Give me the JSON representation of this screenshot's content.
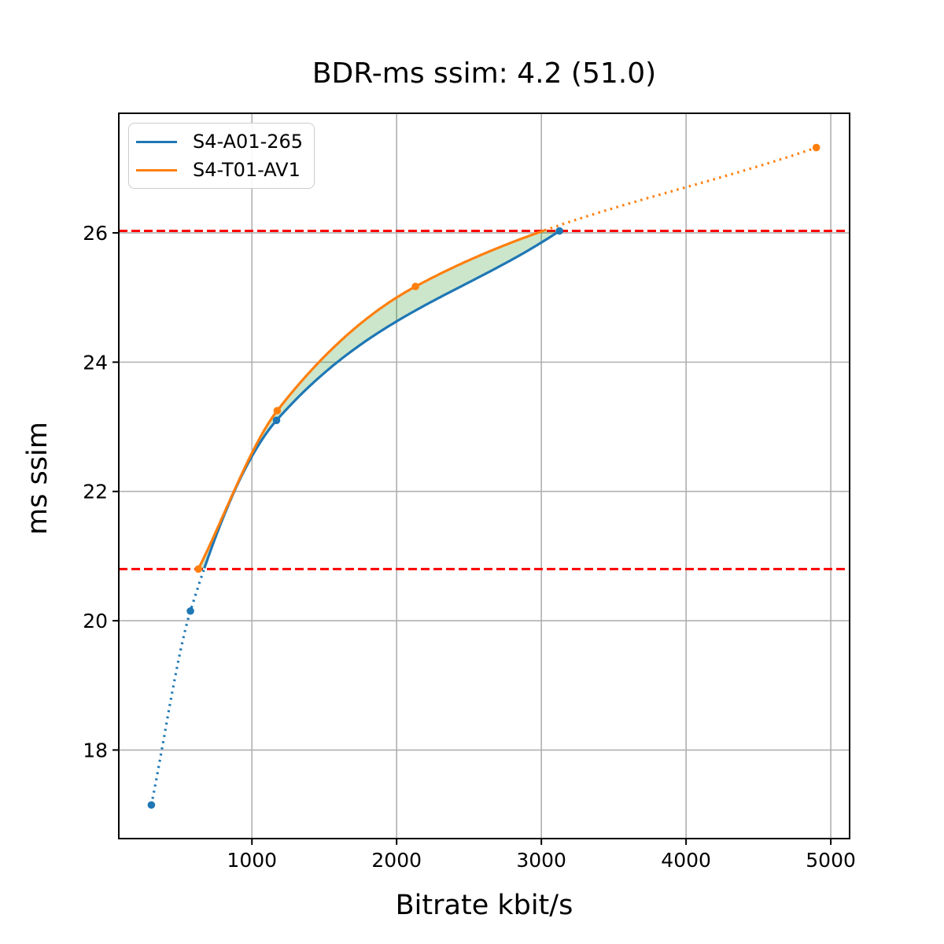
{
  "chart_data": {
    "type": "line",
    "title": "BDR-ms ssim: 4.2 (51.0)",
    "xlabel": "Bitrate kbit/s",
    "ylabel": "ms ssim",
    "xlim": [
      80,
      5130
    ],
    "ylim": [
      16.63,
      27.85
    ],
    "xticks": [
      1000,
      2000,
      3000,
      4000,
      5000
    ],
    "yticks": [
      18,
      20,
      22,
      24,
      26
    ],
    "grid": true,
    "grid_color": "#b0b0b0",
    "axis_color": "#000000",
    "background": "#ffffff",
    "interpolation": "pchip",
    "legend_position": "upper left",
    "series": [
      {
        "name": "S4-A01-265",
        "color": "#1f77b4",
        "x": [
          305,
          575,
          1170,
          3125
        ],
        "y": [
          17.15,
          20.15,
          23.1,
          26.03
        ]
      },
      {
        "name": "S4-T01-AV1",
        "color": "#ff7f0e",
        "x": [
          630,
          1175,
          2130,
          4900
        ],
        "y": [
          20.8,
          23.25,
          25.17,
          27.32
        ]
      }
    ],
    "bdr_overlap": {
      "lower": 20.8,
      "upper": 26.03,
      "line_color": "#ff0000",
      "line_style": "dashed",
      "fill_color": "rgba(0,128,0,0.2)"
    }
  }
}
